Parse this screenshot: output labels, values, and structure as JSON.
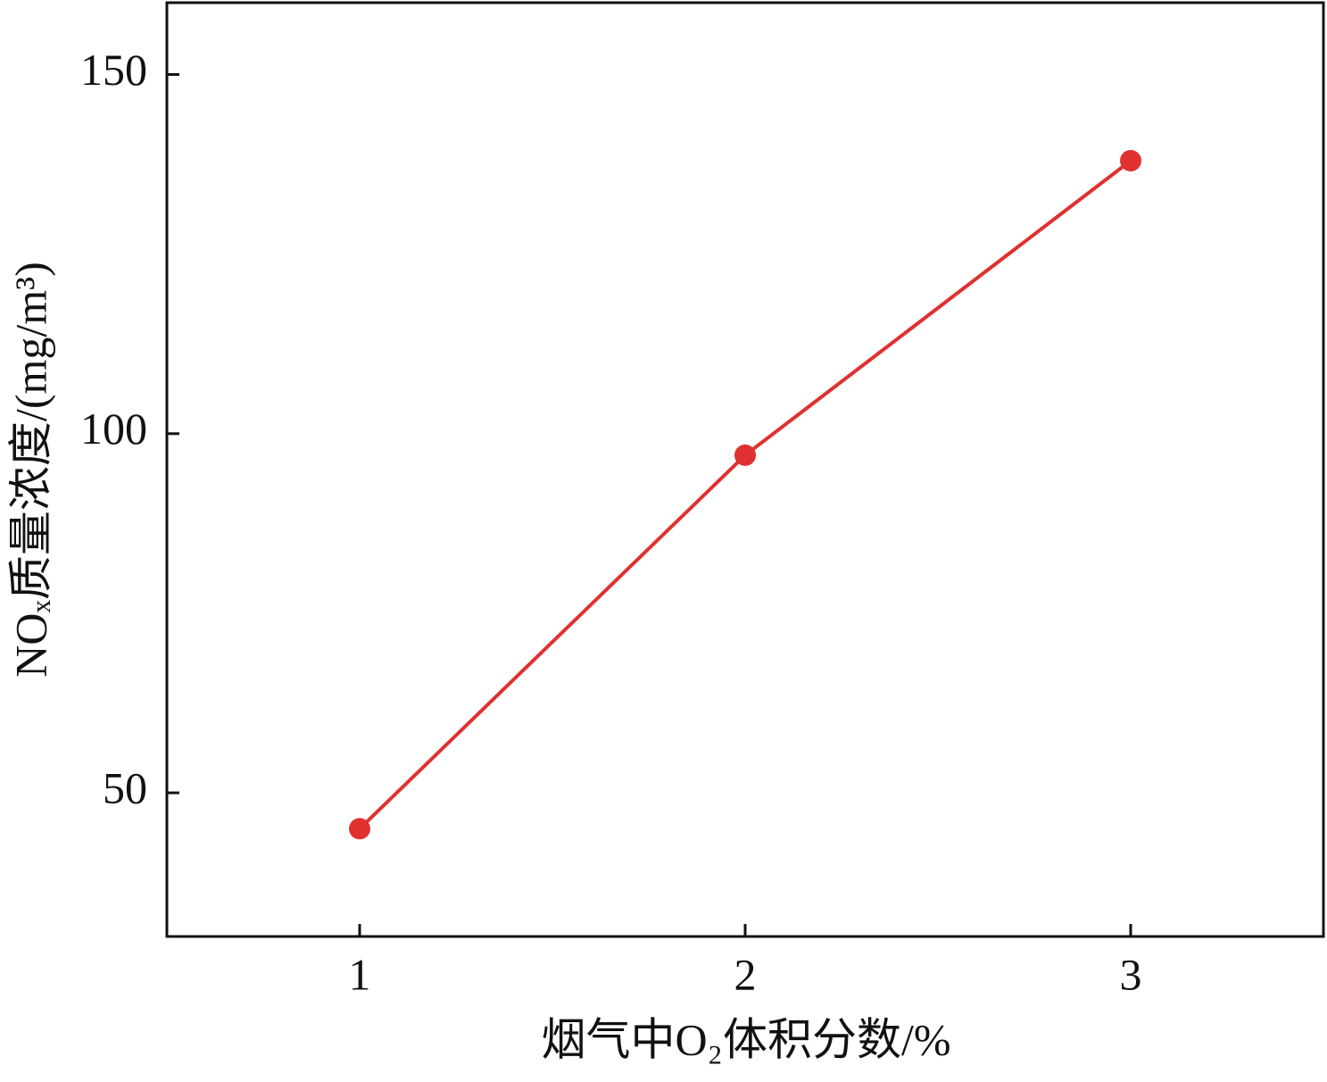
{
  "chart_data": {
    "type": "line",
    "x_label": "烟气中O₂体积分数/%",
    "y_label": "NOₓ质量浓度/(mg/m³)",
    "x": [
      1,
      2,
      3
    ],
    "series": [
      {
        "name": "NOₓ",
        "color": "#e03030",
        "values": [
          45,
          97,
          138
        ]
      }
    ],
    "xlim": [
      0.5,
      3.5
    ],
    "xticks": [
      1,
      2,
      3
    ],
    "ylim": [
      30,
      160
    ],
    "yticks": [
      50,
      100,
      150
    ],
    "grid": false
  }
}
